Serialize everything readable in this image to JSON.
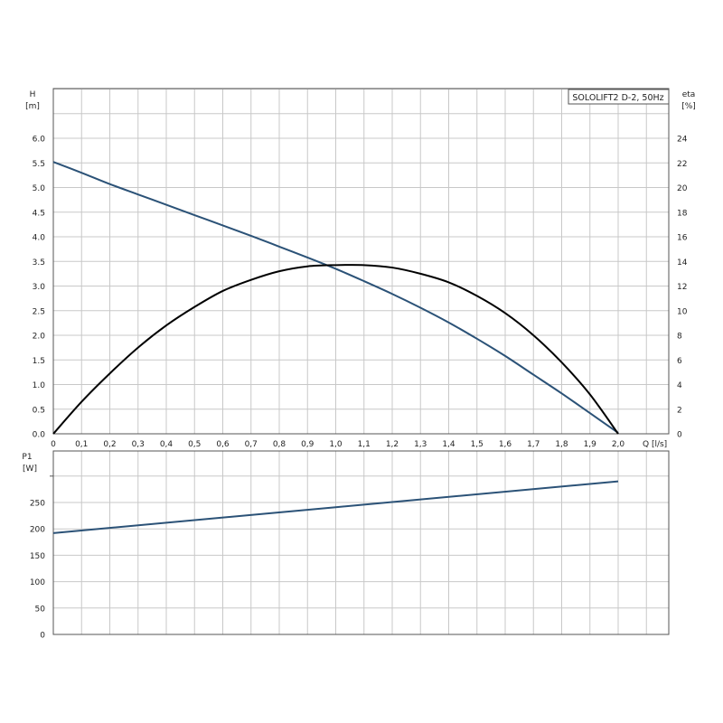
{
  "chart_data": [
    {
      "type": "line",
      "title": "",
      "legend": {
        "text": "SOLOLIFT2 D-2, 50Hz",
        "placement": "top-right"
      },
      "x_axis": {
        "label": "Q [l/s]",
        "range": [
          0,
          2.0
        ],
        "ticks": [
          "0",
          "0,1",
          "0,2",
          "0,3",
          "0,4",
          "0,5",
          "0,6",
          "0,7",
          "0,8",
          "0,9",
          "1,0",
          "1,1",
          "1,2",
          "1,3",
          "1,4",
          "1,5",
          "1,6",
          "1,7",
          "1,8",
          "1,9",
          "2,0"
        ]
      },
      "y_axis_left": {
        "label_name": "H",
        "label_unit": "[m]",
        "range": [
          0,
          6.0
        ],
        "ticks": [
          {
            "value": 0,
            "label": "0.0"
          },
          {
            "value": 0.5,
            "label": "0.5"
          },
          {
            "value": 1.0,
            "label": "1.0"
          },
          {
            "value": 1.5,
            "label": "1.5"
          },
          {
            "value": 2.0,
            "label": "2.0"
          },
          {
            "value": 2.5,
            "label": "2.5"
          },
          {
            "value": 3.0,
            "label": "3.0"
          },
          {
            "value": 3.5,
            "label": "3.5"
          },
          {
            "value": 4.0,
            "label": "4.0"
          },
          {
            "value": 4.5,
            "label": "4.5"
          },
          {
            "value": 5.0,
            "label": "5.0"
          },
          {
            "value": 5.5,
            "label": "5.5"
          },
          {
            "value": 6.0,
            "label": "6.0"
          }
        ]
      },
      "y_axis_right": {
        "label_name": "eta",
        "label_unit": "[%]",
        "range": [
          0,
          24
        ],
        "ticks": [
          "0",
          "2",
          "4",
          "6",
          "8",
          "10",
          "12",
          "14",
          "16",
          "18",
          "20",
          "22",
          "24"
        ]
      },
      "grid": true,
      "series": [
        {
          "axis": "left",
          "color": "#2b5277",
          "x": [
            0,
            0.1,
            0.2,
            0.3,
            0.4,
            0.5,
            0.6,
            0.7,
            0.8,
            0.9,
            1.0,
            1.1,
            1.2,
            1.3,
            1.4,
            1.5,
            1.6,
            1.7,
            1.8,
            1.9,
            2.0
          ],
          "y": [
            5.52,
            5.3,
            5.07,
            4.86,
            4.65,
            4.44,
            4.23,
            4.02,
            3.8,
            3.58,
            3.35,
            3.1,
            2.84,
            2.56,
            2.26,
            1.93,
            1.58,
            1.2,
            0.82,
            0.42,
            0.02
          ]
        },
        {
          "axis": "right",
          "color": "#000000",
          "x": [
            0,
            0.1,
            0.2,
            0.3,
            0.4,
            0.5,
            0.6,
            0.7,
            0.8,
            0.9,
            1.0,
            1.1,
            1.2,
            1.3,
            1.4,
            1.5,
            1.6,
            1.7,
            1.8,
            1.9,
            2.0
          ],
          "y": [
            0,
            2.6,
            4.9,
            7.0,
            8.8,
            10.3,
            11.6,
            12.5,
            13.2,
            13.6,
            13.7,
            13.7,
            13.5,
            13.0,
            12.3,
            11.2,
            9.8,
            8.0,
            5.8,
            3.2,
            0
          ]
        }
      ]
    },
    {
      "type": "line",
      "title": "",
      "x_axis": {
        "range": [
          0,
          2.0
        ]
      },
      "y_axis_left": {
        "label_name": "P1",
        "label_unit": "[W]",
        "range": [
          0,
          300
        ],
        "ticks": [
          "0",
          "50",
          "100",
          "150",
          "200",
          "250"
        ]
      },
      "grid": true,
      "series": [
        {
          "axis": "left",
          "color": "#2b5277",
          "x": [
            0,
            2.0
          ],
          "y": [
            192,
            290
          ]
        }
      ]
    }
  ]
}
